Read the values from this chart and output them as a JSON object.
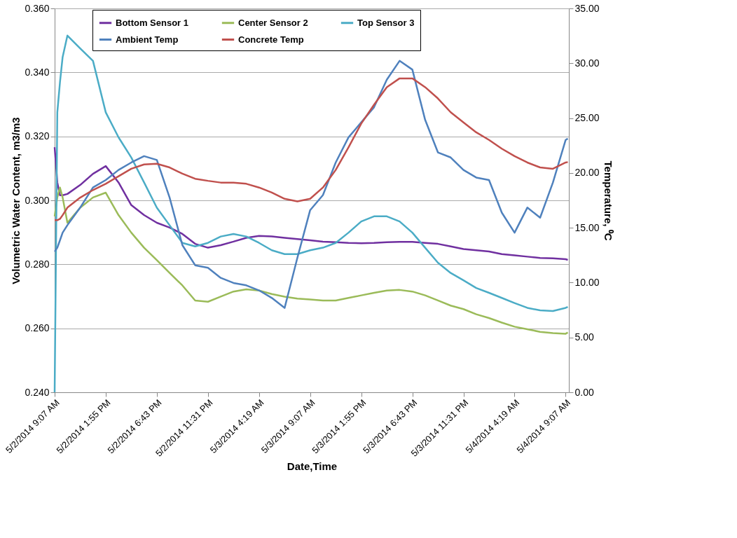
{
  "chart_data": {
    "type": "line",
    "xlabel": "Date,Time",
    "ylabel": "Volumetric Water Content, m3/m3",
    "y2label": "Temperature, ⁰C",
    "x": [
      "2014-05-02T09:07",
      "2014-05-02T09:22",
      "2014-05-02T09:37",
      "2014-05-02T09:52",
      "2014-05-02T10:19",
      "2014-05-02T11:31",
      "2014-05-02T12:43",
      "2014-05-02T13:55",
      "2014-05-02T15:07",
      "2014-05-02T16:19",
      "2014-05-02T17:31",
      "2014-05-02T18:43",
      "2014-05-02T19:55",
      "2014-05-02T21:07",
      "2014-05-02T22:19",
      "2014-05-02T23:31",
      "2014-05-03T00:43",
      "2014-05-03T01:55",
      "2014-05-03T03:07",
      "2014-05-03T04:19",
      "2014-05-03T05:31",
      "2014-05-03T06:43",
      "2014-05-03T07:55",
      "2014-05-03T09:07",
      "2014-05-03T10:19",
      "2014-05-03T11:31",
      "2014-05-03T12:43",
      "2014-05-03T13:55",
      "2014-05-03T15:07",
      "2014-05-03T16:19",
      "2014-05-03T17:31",
      "2014-05-03T18:43",
      "2014-05-03T19:55",
      "2014-05-03T21:07",
      "2014-05-03T22:19",
      "2014-05-03T23:31",
      "2014-05-04T00:43",
      "2014-05-04T01:55",
      "2014-05-04T03:07",
      "2014-05-04T04:19",
      "2014-05-04T05:31",
      "2014-05-04T06:43",
      "2014-05-04T07:55",
      "2014-05-04T09:07",
      "2014-05-04T09:19"
    ],
    "series": [
      {
        "name": "Bottom Sensor 1",
        "color": "#7030a0",
        "values": [
          0.3166,
          0.3056,
          0.3016,
          0.3016,
          0.302,
          0.3048,
          0.3083,
          0.3107,
          0.3056,
          0.2985,
          0.2954,
          0.293,
          0.2915,
          0.2895,
          0.2864,
          0.2852,
          0.286,
          0.2871,
          0.2883,
          0.2889,
          0.2887,
          0.2883,
          0.2879,
          0.2875,
          0.2871,
          0.2869,
          0.2867,
          0.2866,
          0.2867,
          0.2869,
          0.287,
          0.287,
          0.2867,
          0.2864,
          0.2856,
          0.2848,
          0.2844,
          0.284,
          0.2832,
          0.2828,
          0.2824,
          0.282,
          0.2819,
          0.2816,
          0.2814
        ]
      },
      {
        "name": "Center Sensor 2",
        "color": "#9bbb59",
        "values": [
          0.295,
          0.3009,
          0.304,
          0.3009,
          0.293,
          0.2977,
          0.3009,
          0.3024,
          0.2954,
          0.2899,
          0.2852,
          0.2813,
          0.2773,
          0.2734,
          0.2687,
          0.2683,
          0.2699,
          0.2715,
          0.2722,
          0.2718,
          0.2707,
          0.2699,
          0.2693,
          0.269,
          0.2687,
          0.2687,
          0.2695,
          0.2703,
          0.2711,
          0.2718,
          0.272,
          0.2715,
          0.2703,
          0.2687,
          0.2671,
          0.266,
          0.2644,
          0.2632,
          0.2618,
          0.2605,
          0.2597,
          0.2589,
          0.2585,
          0.2583,
          0.2587
        ]
      },
      {
        "name": "Top Sensor 3",
        "color": "#4bacc6",
        "values": [
          0.24,
          0.3275,
          0.3369,
          0.3448,
          0.3515,
          0.3475,
          0.3436,
          0.3275,
          0.3197,
          0.3134,
          0.3056,
          0.2977,
          0.2922,
          0.2867,
          0.2856,
          0.2867,
          0.2887,
          0.2895,
          0.2887,
          0.2867,
          0.2844,
          0.2832,
          0.2832,
          0.2844,
          0.2852,
          0.2867,
          0.2899,
          0.2934,
          0.295,
          0.295,
          0.2934,
          0.2899,
          0.2852,
          0.2805,
          0.2773,
          0.275,
          0.2726,
          0.2711,
          0.2695,
          0.2679,
          0.2664,
          0.2656,
          0.2654,
          0.2664,
          0.2667
        ]
      },
      {
        "name": "Ambient Temp",
        "color": "#4f81bd",
        "axis": "y2",
        "values": [
          12.83,
          13.18,
          13.86,
          14.55,
          15.24,
          16.84,
          18.67,
          19.35,
          20.27,
          20.95,
          21.53,
          21.18,
          17.75,
          13.41,
          11.58,
          11.35,
          10.43,
          9.97,
          9.75,
          9.29,
          8.6,
          7.69,
          12.26,
          16.61,
          17.98,
          20.95,
          23.24,
          24.61,
          25.99,
          28.5,
          30.22,
          29.42,
          24.84,
          21.87,
          21.41,
          20.27,
          19.58,
          19.35,
          16.38,
          14.55,
          16.84,
          15.92,
          19.12,
          23.01,
          23.13
        ]
      },
      {
        "name": "Concrete Temp",
        "color": "#c0504d",
        "axis": "y2",
        "values": [
          15.69,
          15.69,
          15.81,
          16.15,
          16.84,
          17.75,
          18.44,
          19.01,
          19.7,
          20.38,
          20.77,
          20.84,
          20.5,
          19.93,
          19.47,
          19.28,
          19.12,
          19.12,
          19.01,
          18.67,
          18.21,
          17.64,
          17.41,
          17.64,
          18.67,
          20.27,
          22.33,
          24.5,
          26.22,
          27.82,
          28.62,
          28.62,
          27.82,
          26.79,
          25.53,
          24.61,
          23.7,
          23.01,
          22.21,
          21.53,
          20.95,
          20.5,
          20.38,
          20.95,
          20.99
        ]
      }
    ],
    "xlim": [
      "2014-05-02T09:07",
      "2014-05-04T09:25"
    ],
    "xticks": [
      {
        "value": "2014-05-02T09:07",
        "label": "5/2/2014 9:07 AM"
      },
      {
        "value": "2014-05-02T13:55",
        "label": "5/2/2014 1:55 PM"
      },
      {
        "value": "2014-05-02T18:43",
        "label": "5/2/2014 6:43 PM"
      },
      {
        "value": "2014-05-02T23:31",
        "label": "5/2/2014 11:31 PM"
      },
      {
        "value": "2014-05-03T04:19",
        "label": "5/3/2014 4:19 AM"
      },
      {
        "value": "2014-05-03T09:07",
        "label": "5/3/2014 9:07 AM"
      },
      {
        "value": "2014-05-03T13:55",
        "label": "5/3/2014 1:55 PM"
      },
      {
        "value": "2014-05-03T18:43",
        "label": "5/3/2014 6:43 PM"
      },
      {
        "value": "2014-05-03T23:31",
        "label": "5/3/2014 11:31 PM"
      },
      {
        "value": "2014-05-04T04:19",
        "label": "5/4/2014 4:19 AM"
      },
      {
        "value": "2014-05-04T09:07",
        "label": "5/4/2014 9:07 AM"
      }
    ],
    "ylim": [
      0.24,
      0.36
    ],
    "yticks": [
      {
        "value": 0.24,
        "label": "0.240"
      },
      {
        "value": 0.26,
        "label": "0.260"
      },
      {
        "value": 0.28,
        "label": "0.280"
      },
      {
        "value": 0.3,
        "label": "0.300"
      },
      {
        "value": 0.32,
        "label": "0.320"
      },
      {
        "value": 0.34,
        "label": "0.340"
      },
      {
        "value": 0.36,
        "label": "0.360"
      }
    ],
    "y2lim": [
      0,
      35
    ],
    "y2ticks": [
      {
        "value": 0,
        "label": "0.00"
      },
      {
        "value": 5,
        "label": "5.00"
      },
      {
        "value": 10,
        "label": "10.00"
      },
      {
        "value": 15,
        "label": "15.00"
      },
      {
        "value": 20,
        "label": "20.00"
      },
      {
        "value": 25,
        "label": "25.00"
      },
      {
        "value": 30,
        "label": "30.00"
      },
      {
        "value": 35,
        "label": "35.00"
      }
    ],
    "grid": "y",
    "legend": "top",
    "marker": "none",
    "line_style": "solid"
  }
}
